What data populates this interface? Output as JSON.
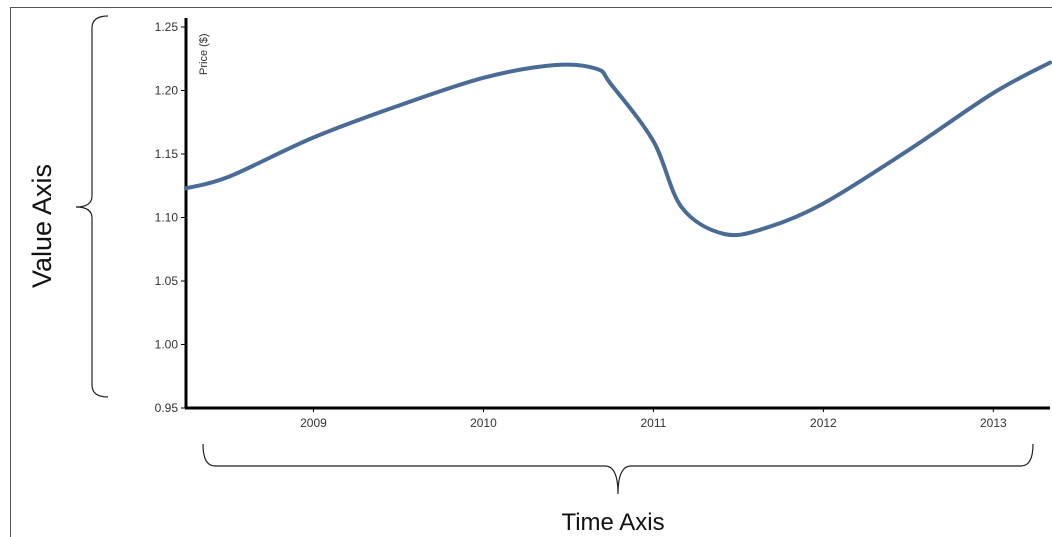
{
  "chart_data": {
    "type": "line",
    "ylabel": "Price ($)",
    "ylim": [
      0.95,
      1.25
    ],
    "y_ticks": [
      "0.95",
      "1.00",
      "1.05",
      "1.10",
      "1.15",
      "1.20",
      "1.25"
    ],
    "x_range": [
      "2008-04",
      "2013-05"
    ],
    "x_ticks": [
      "2009",
      "2010",
      "2011",
      "2012",
      "2013"
    ],
    "series": [
      {
        "color": "#4a6b95",
        "points": [
          {
            "x": "2008-04",
            "y": 1.123
          },
          {
            "x": "2008-07",
            "y": 1.132
          },
          {
            "x": "2009-01",
            "y": 1.163
          },
          {
            "x": "2009-07",
            "y": 1.188
          },
          {
            "x": "2010-01",
            "y": 1.21
          },
          {
            "x": "2010-06",
            "y": 1.22
          },
          {
            "x": "2010-09",
            "y": 1.217
          },
          {
            "x": "2010-10",
            "y": 1.205
          },
          {
            "x": "2011-01",
            "y": 1.16
          },
          {
            "x": "2011-03",
            "y": 1.108
          },
          {
            "x": "2011-06",
            "y": 1.087
          },
          {
            "x": "2011-09",
            "y": 1.092
          },
          {
            "x": "2012-01",
            "y": 1.111
          },
          {
            "x": "2012-07",
            "y": 1.153
          },
          {
            "x": "2013-01",
            "y": 1.198
          },
          {
            "x": "2013-05",
            "y": 1.222
          }
        ]
      }
    ]
  },
  "annotations": {
    "value_axis": "Value Axis",
    "time_axis": "Time Axis"
  }
}
